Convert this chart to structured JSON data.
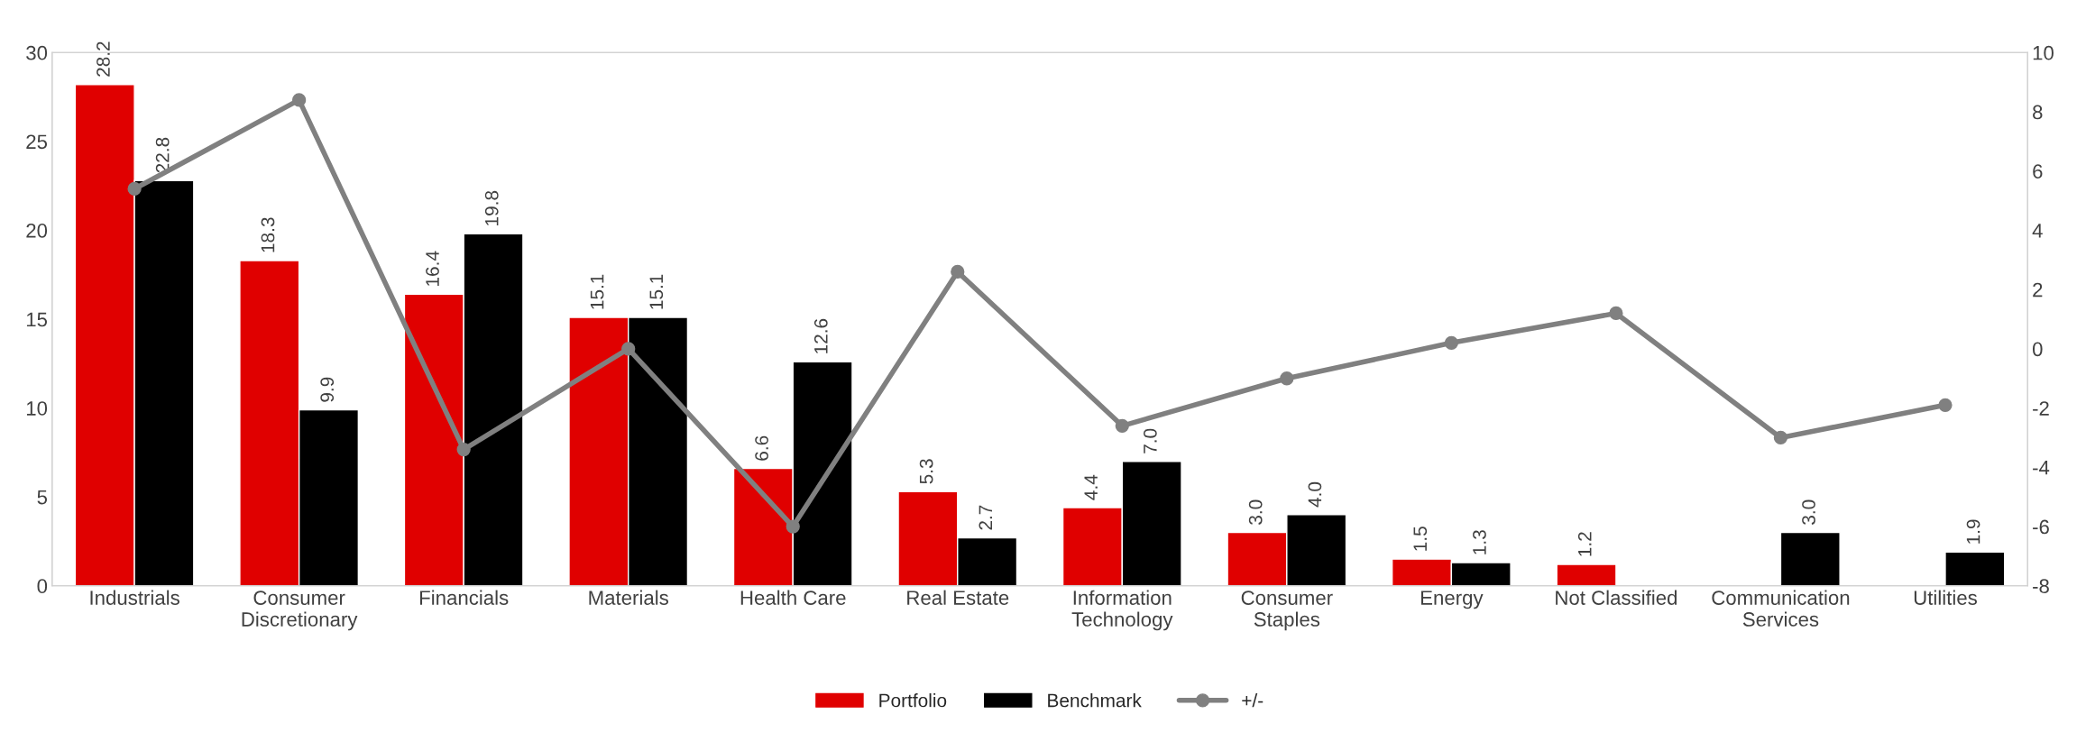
{
  "chart_data": {
    "type": "bar",
    "categories": [
      "Industrials",
      "Consumer\nDiscretionary",
      "Financials",
      "Materials",
      "Health Care",
      "Real Estate",
      "Information\nTechnology",
      "Consumer\nStaples",
      "Energy",
      "Not Classified",
      "Communication\nServices",
      "Utilities"
    ],
    "series": [
      {
        "name": "Portfolio",
        "color": "#e00000",
        "values": [
          28.2,
          18.3,
          16.4,
          15.1,
          6.6,
          5.3,
          4.4,
          3.0,
          1.5,
          1.2,
          null,
          null
        ],
        "value_labels": [
          "28.2",
          "18.3",
          "16.4",
          "15.1",
          "6.6",
          "5.3",
          "4.4",
          "3.0",
          "1.5",
          "1.2",
          null,
          null
        ]
      },
      {
        "name": "Benchmark",
        "color": "#000000",
        "values": [
          22.8,
          9.9,
          19.8,
          15.1,
          12.6,
          2.7,
          7.0,
          4.0,
          1.3,
          null,
          3.0,
          1.9
        ],
        "value_labels": [
          "22.8",
          "9.9",
          "19.8",
          "15.1",
          "12.6",
          "2.7",
          "7.0",
          "4.0",
          "1.3",
          null,
          "3.0",
          "1.9"
        ]
      },
      {
        "name": "+/-",
        "type": "line",
        "axis": "y2",
        "color": "#808080",
        "marker": "circle",
        "values": [
          5.4,
          8.4,
          -3.4,
          0.0,
          -6.0,
          2.6,
          -2.6,
          -1.0,
          0.2,
          1.2,
          -3.0,
          -1.9
        ]
      }
    ],
    "ylim": [
      0,
      30
    ],
    "yticks": [
      0,
      5,
      10,
      15,
      20,
      25,
      30
    ],
    "y2lim": [
      -8,
      10
    ],
    "y2ticks": [
      -8,
      -6,
      -4,
      -2,
      0,
      2,
      4,
      6,
      8,
      10
    ],
    "grid": false,
    "legend": "bottom"
  }
}
